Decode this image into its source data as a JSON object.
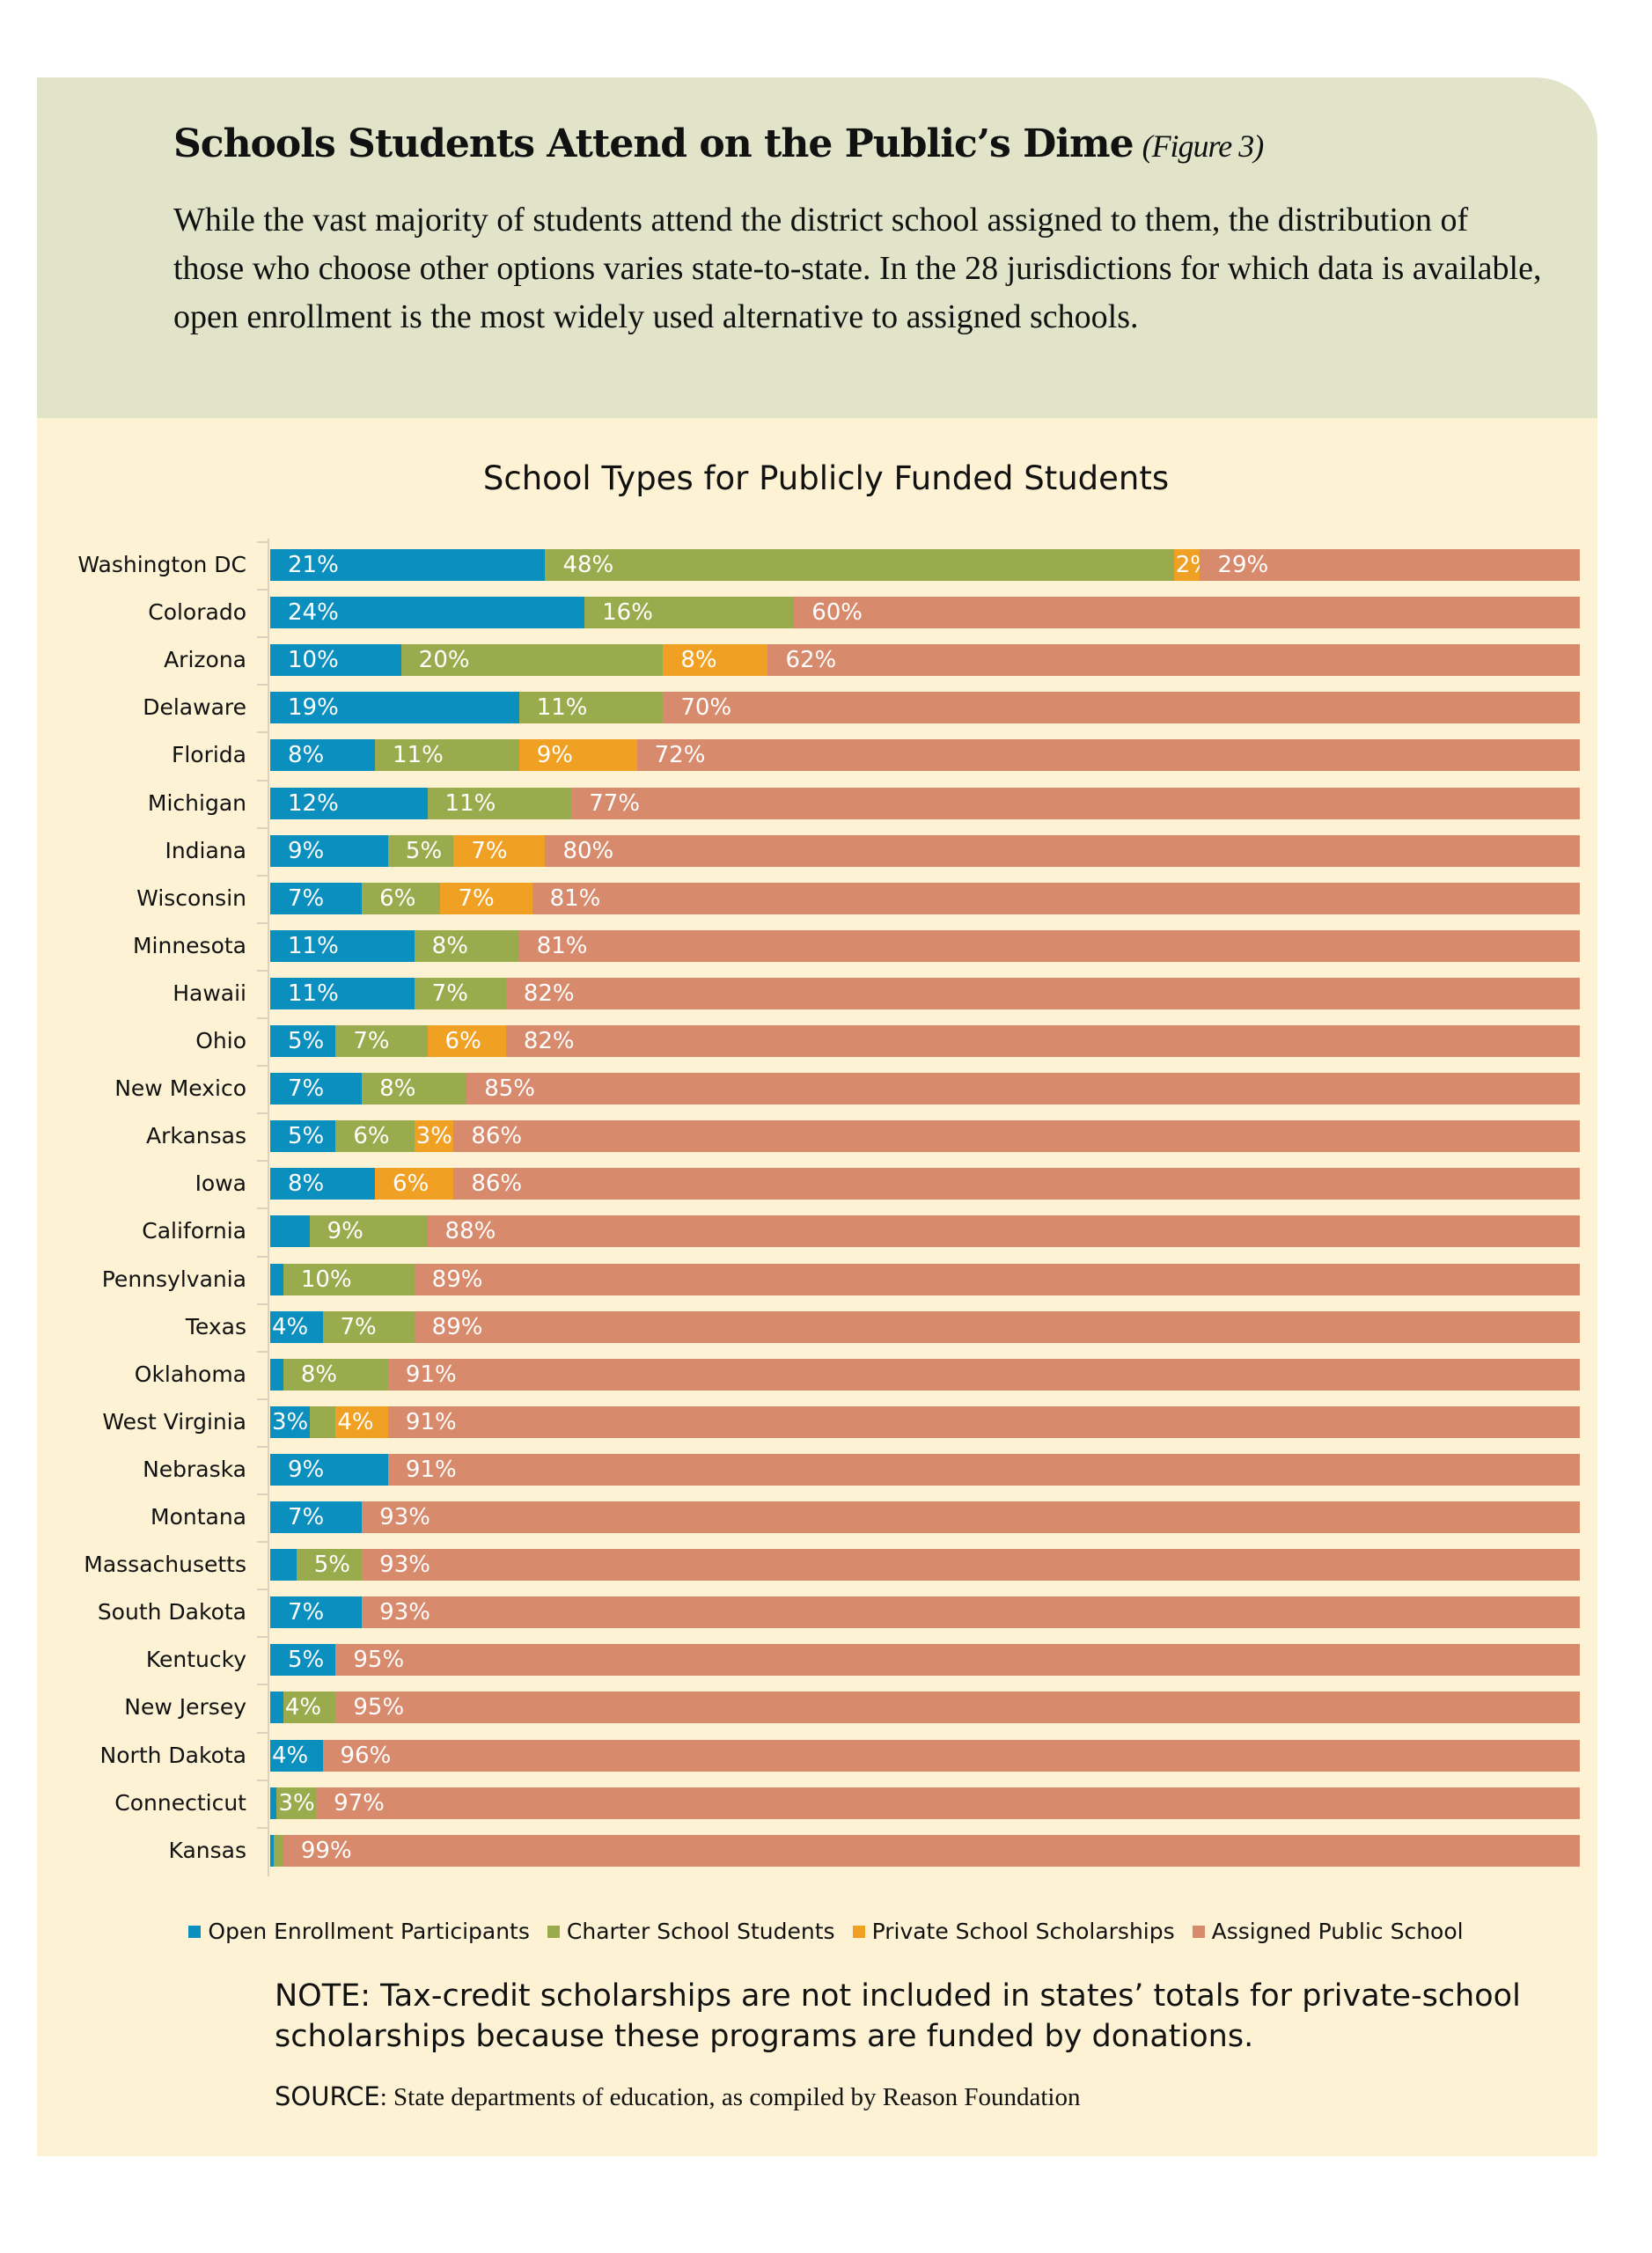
{
  "header": {
    "title": "Schools Students Attend on the Public’s Dime",
    "figure": "(Figure 3)",
    "body": "While the vast majority of students attend the district school assigned to them, the distribution of those who choose other options varies state-to-state. In the 28 jurisdictions for which data is available, open enrollment is the most widely used alternative to assigned schools."
  },
  "colors": {
    "open": "#0a8fbf",
    "charter": "#9aab4e",
    "private": "#f0a022",
    "assigned": "#d88a6c",
    "header_bg": "#e1e4c9",
    "panel_bg": "#fdf3d4"
  },
  "chart_data": {
    "type": "bar",
    "orientation": "horizontal",
    "stacked": true,
    "title": "School Types for Publicly Funded Students",
    "unit": "%",
    "xlim": [
      0,
      100
    ],
    "grid": false,
    "legend_placement": "bottom",
    "categories": [
      "Washington DC",
      "Colorado",
      "Arizona",
      "Delaware",
      "Florida",
      "Michigan",
      "Indiana",
      "Wisconsin",
      "Minnesota",
      "Hawaii",
      "Ohio",
      "New Mexico",
      "Arkansas",
      "Iowa",
      "California",
      "Pennsylvania",
      "Texas",
      "Oklahoma",
      "West Virginia",
      "Nebraska",
      "Montana",
      "Massachusetts",
      "South Dakota",
      "Kentucky",
      "New Jersey",
      "North Dakota",
      "Connecticut",
      "Kansas"
    ],
    "series": [
      {
        "name": "Open Enrollment Participants",
        "color": "#0a8fbf",
        "values": [
          21,
          24,
          10,
          19,
          8,
          12,
          9,
          7,
          11,
          11,
          5,
          7,
          5,
          8,
          3,
          1,
          4,
          1,
          3,
          9,
          7,
          2,
          7,
          5,
          1,
          4,
          0.5,
          0.3
        ],
        "labels": [
          "21%",
          "24%",
          "10%",
          "19%",
          "8%",
          "12%",
          "9%",
          "7%",
          "11%",
          "11%",
          "5%",
          "7%",
          "5%",
          "8%",
          null,
          null,
          "4%",
          null,
          "3%",
          "9%",
          "7%",
          null,
          "7%",
          "5%",
          null,
          "4%",
          null,
          null
        ]
      },
      {
        "name": "Charter School Students",
        "color": "#9aab4e",
        "values": [
          48,
          16,
          20,
          11,
          11,
          11,
          5,
          6,
          8,
          7,
          7,
          8,
          6,
          0,
          9,
          10,
          7,
          8,
          2,
          0,
          0,
          5,
          0,
          0,
          4,
          0,
          3,
          0.7
        ],
        "labels": [
          "48%",
          "16%",
          "20%",
          "11%",
          "11%",
          "11%",
          "5%",
          "6%",
          "8%",
          "7%",
          "7%",
          "8%",
          "6%",
          null,
          "9%",
          "10%",
          "7%",
          "8%",
          null,
          null,
          null,
          "5%",
          null,
          null,
          "4%",
          null,
          "3%",
          null
        ]
      },
      {
        "name": "Private School Scholarships",
        "color": "#f0a022",
        "values": [
          2,
          0,
          8,
          0,
          9,
          0,
          7,
          7,
          0,
          0,
          6,
          0,
          3,
          6,
          0,
          0,
          0,
          0,
          4,
          0,
          0,
          0,
          0,
          0,
          0,
          0,
          0,
          0
        ],
        "labels": [
          "2%",
          null,
          "8%",
          null,
          "9%",
          null,
          "7%",
          "7%",
          null,
          null,
          "6%",
          null,
          "3%",
          "6%",
          null,
          null,
          null,
          null,
          "4%",
          null,
          null,
          null,
          null,
          null,
          null,
          null,
          null,
          null
        ]
      },
      {
        "name": "Assigned Public School",
        "color": "#d88a6c",
        "values": [
          29,
          60,
          62,
          70,
          72,
          77,
          80,
          81,
          81,
          82,
          82,
          85,
          86,
          86,
          88,
          89,
          89,
          91,
          91,
          91,
          93,
          93,
          93,
          95,
          95,
          96,
          97,
          99
        ],
        "labels": [
          "29%",
          "60%",
          "62%",
          "70%",
          "72%",
          "77%",
          "80%",
          "81%",
          "81%",
          "82%",
          "82%",
          "85%",
          "86%",
          "86%",
          "88%",
          "89%",
          "89%",
          "91%",
          "91%",
          "91%",
          "93%",
          "93%",
          "93%",
          "95%",
          "95%",
          "96%",
          "97%",
          "99%"
        ]
      }
    ]
  },
  "note": "NOTE: Tax-credit scholarships are not included in states’ totals for private-school scholarships because these programs are funded by donations.",
  "source_key": "SOURCE",
  "source_text": ": State departments of education, as compiled by Reason Foundation"
}
